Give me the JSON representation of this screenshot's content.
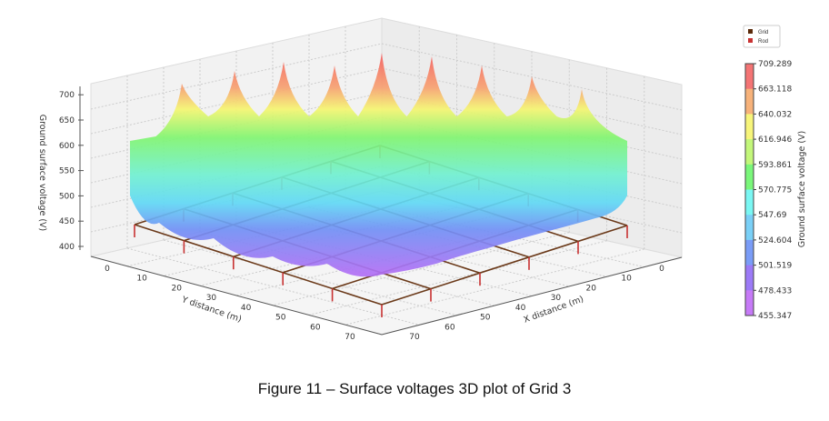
{
  "chart_data": {
    "type": "surface3d",
    "zlabel": "Ground surface voltage (V)",
    "xlabel": "X distance (m)",
    "ylabel": "Y distance (m)",
    "z_ticks": [
      "400",
      "450",
      "500",
      "550",
      "600",
      "650",
      "700"
    ],
    "x_ticks": [
      "0",
      "10",
      "20",
      "30",
      "40",
      "50",
      "60",
      "70"
    ],
    "y_ticks": [
      "0",
      "10",
      "20",
      "30",
      "40",
      "50",
      "60",
      "70"
    ],
    "zlim": [
      400,
      710
    ],
    "xlim": [
      0,
      75
    ],
    "ylim": [
      0,
      75
    ],
    "grid": true,
    "legend": {
      "placement": "top-right",
      "entries": [
        {
          "name": "Grid",
          "color": "#5a2a0a"
        },
        {
          "name": "Rod",
          "color": "#c83232"
        }
      ]
    },
    "colorbar": {
      "label": "Ground surface voltage (V)",
      "ticks": [
        "709.289",
        "663.118",
        "640.032",
        "616.946",
        "593.861",
        "570.775",
        "547.69",
        "524.604",
        "501.519",
        "478.433",
        "455.347"
      ],
      "colors": [
        "#f47474",
        "#f7b27a",
        "#f7f57a",
        "#c3f77a",
        "#7af77a",
        "#7af7f3",
        "#7ad0f7",
        "#7a9cf7",
        "#9c7af7",
        "#c67af7"
      ]
    },
    "grid_conductor": {
      "rows": 6,
      "cols": 6
    }
  },
  "caption": "Figure 11 – Surface voltages 3D plot of Grid 3"
}
